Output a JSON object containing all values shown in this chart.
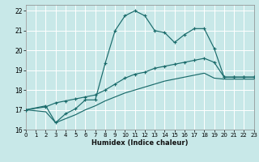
{
  "xlabel": "Humidex (Indice chaleur)",
  "bg_color": "#c8e8e8",
  "grid_color": "#ffffff",
  "line_color": "#1a6b6b",
  "xlim": [
    0,
    23
  ],
  "ylim": [
    16,
    22.3
  ],
  "yticks": [
    16,
    17,
    18,
    19,
    20,
    21,
    22
  ],
  "xticks": [
    0,
    1,
    2,
    3,
    4,
    5,
    6,
    7,
    8,
    9,
    10,
    11,
    12,
    13,
    14,
    15,
    16,
    17,
    18,
    19,
    20,
    21,
    22,
    23
  ],
  "line1_x": [
    0,
    2,
    3,
    4,
    5,
    6,
    7,
    8,
    9,
    10,
    11,
    12,
    13,
    14,
    15,
    16,
    17,
    18,
    19,
    20,
    21,
    22,
    23
  ],
  "line1_y": [
    17.0,
    17.2,
    16.35,
    16.8,
    17.05,
    17.5,
    17.5,
    19.35,
    21.0,
    21.75,
    22.0,
    21.75,
    21.0,
    20.9,
    20.4,
    20.8,
    21.1,
    21.1,
    20.1,
    18.65,
    18.65,
    18.65,
    18.65
  ],
  "line2_x": [
    0,
    2,
    3,
    4,
    5,
    6,
    7,
    8,
    9,
    10,
    11,
    12,
    13,
    14,
    15,
    16,
    17,
    18,
    19,
    20,
    21,
    22,
    23
  ],
  "line2_y": [
    17.0,
    17.15,
    17.35,
    17.45,
    17.55,
    17.65,
    17.75,
    18.0,
    18.3,
    18.6,
    18.8,
    18.9,
    19.1,
    19.2,
    19.3,
    19.4,
    19.5,
    19.6,
    19.4,
    18.65,
    18.65,
    18.65,
    18.65
  ],
  "line3_x": [
    0,
    2,
    3,
    4,
    5,
    6,
    7,
    8,
    9,
    10,
    11,
    12,
    13,
    14,
    15,
    16,
    17,
    18,
    19,
    20,
    21,
    22,
    23
  ],
  "line3_y": [
    17.0,
    16.9,
    16.35,
    16.55,
    16.75,
    17.0,
    17.2,
    17.45,
    17.65,
    17.85,
    18.0,
    18.15,
    18.3,
    18.45,
    18.55,
    18.65,
    18.75,
    18.85,
    18.6,
    18.55,
    18.55,
    18.55,
    18.55
  ]
}
